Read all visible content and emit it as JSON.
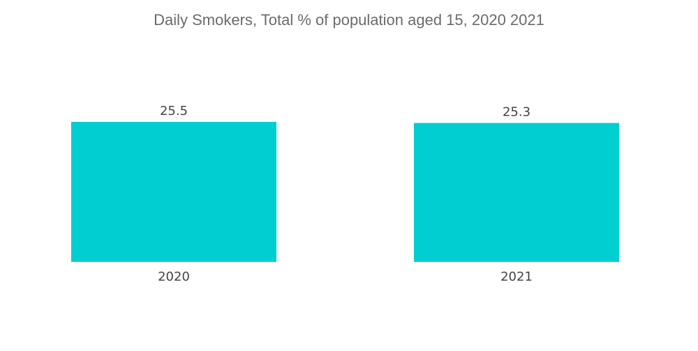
{
  "chart_data": {
    "type": "bar",
    "title": "Daily Smokers, Total % of population aged 15, 2020 2021",
    "xlabel": "",
    "ylabel": "",
    "categories": [
      "2020",
      "2021"
    ],
    "values": [
      25.5,
      25.3
    ],
    "value_labels": [
      "25.5",
      "25.3"
    ],
    "ylim": [
      0,
      25.5
    ],
    "grid": false,
    "legend": "none",
    "bar_color": "#00CED1"
  }
}
